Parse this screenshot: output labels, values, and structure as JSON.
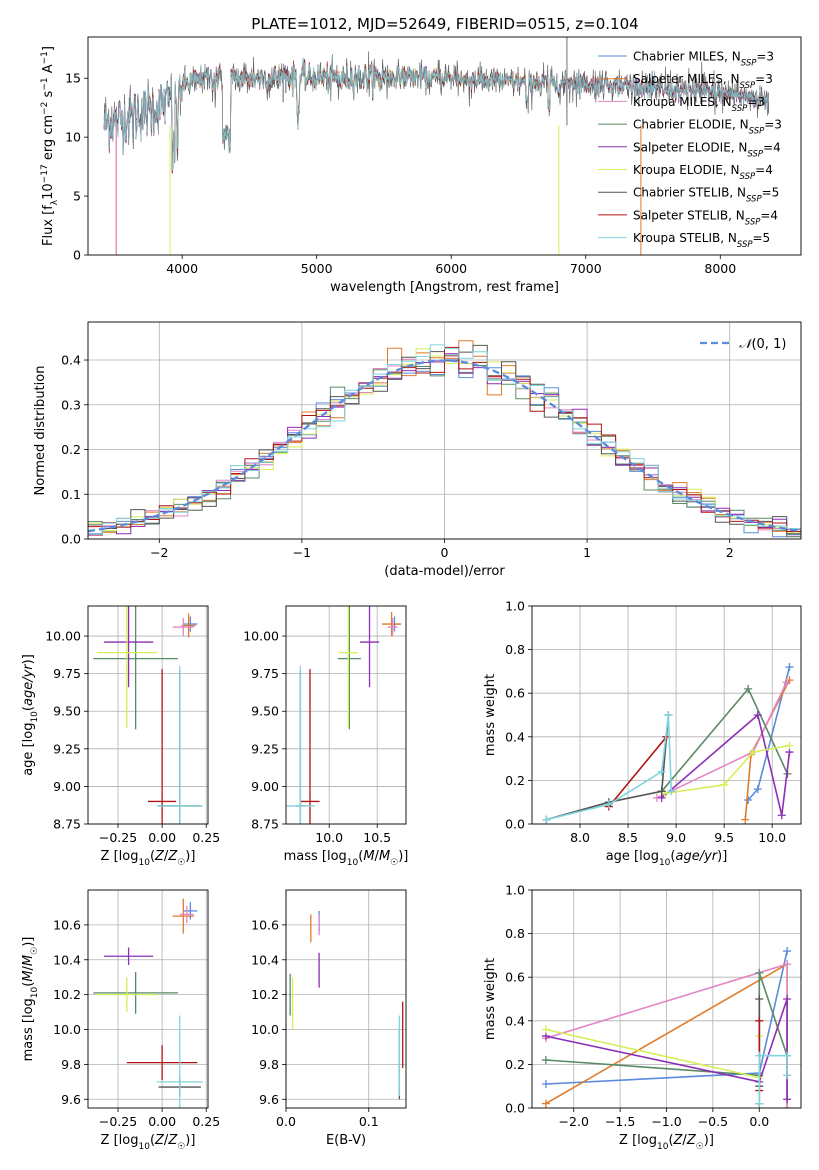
{
  "title": "PLATE=1012, MJD=52649, FIBERID=0515, z=0.104",
  "colors": {
    "Chabrier MILES": "#5b8bdc",
    "Salpeter MILES": "#e07b2a",
    "Kroupa MILES": "#e386c4",
    "Chabrier ELODIE": "#5a8a66",
    "Salpeter ELODIE": "#8b2fb4",
    "Kroupa ELODIE": "#d6ee5a",
    "Chabrier STELIB": "#555555",
    "Salpeter STELIB": "#b01515",
    "Kroupa STELIB": "#7fd4de"
  },
  "chart_data": [
    {
      "id": "spectrum",
      "type": "line",
      "title": "PLATE=1012, MJD=52649, FIBERID=0515, z=0.104",
      "xlabel": "wavelength [Angstrom, rest frame]",
      "ylabel": "Flux [f_λ 10^-17 erg cm^-2 s^-1 A^-1]",
      "xlim": [
        3300,
        8600
      ],
      "ylim": [
        0,
        18.5
      ],
      "xticks": [
        4000,
        5000,
        6000,
        7000,
        8000
      ],
      "yticks": [
        0,
        5,
        10,
        15
      ],
      "grid": false,
      "legend_position": "top-right",
      "legend": [
        {
          "label": "Chabrier MILES, N_SSP=3",
          "base": "Chabrier MILES, N",
          "sub": "SSP",
          "tail": "=3",
          "series": "Chabrier MILES"
        },
        {
          "label": "Salpeter MILES, N_SSP=3",
          "base": "Salpeter MILES, N",
          "sub": "SSP",
          "tail": "=3",
          "series": "Salpeter MILES"
        },
        {
          "label": "Kroupa MILES, N_SSP=3",
          "base": "Kroupa MILES, N",
          "sub": "SSP",
          "tail": "=3",
          "series": "Kroupa MILES"
        },
        {
          "label": "Chabrier ELODIE, N_SSP=3",
          "base": "Chabrier ELODIE, N",
          "sub": "SSP",
          "tail": "=3",
          "series": "Chabrier ELODIE"
        },
        {
          "label": "Salpeter ELODIE, N_SSP=4",
          "base": "Salpeter ELODIE, N",
          "sub": "SSP",
          "tail": "=4",
          "series": "Salpeter ELODIE"
        },
        {
          "label": "Kroupa ELODIE, N_SSP=4",
          "base": "Kroupa ELODIE, N",
          "sub": "SSP",
          "tail": "=4",
          "series": "Kroupa ELODIE"
        },
        {
          "label": "Chabrier STELIB, N_SSP=5",
          "base": "Chabrier STELIB, N",
          "sub": "SSP",
          "tail": "=5",
          "series": "Chabrier STELIB"
        },
        {
          "label": "Salpeter STELIB, N_SSP=4",
          "base": "Salpeter STELIB, N",
          "sub": "SSP",
          "tail": "=4",
          "series": "Salpeter STELIB"
        },
        {
          "label": "Kroupa STELIB, N_SSP=5",
          "base": "Kroupa STELIB, N",
          "sub": "SSP",
          "tail": "=5",
          "series": "Kroupa STELIB"
        }
      ],
      "continuum": {
        "x": [
          3400,
          3700,
          3900,
          4000,
          4200,
          4500,
          4800,
          5200,
          5600,
          6000,
          6400,
          6800,
          7200,
          7600,
          8000,
          8400
        ],
        "y": [
          11.0,
          12.0,
          13.0,
          14.5,
          15.0,
          15.0,
          15.1,
          15.0,
          15.2,
          15.0,
          14.7,
          14.6,
          14.5,
          14.0,
          13.8,
          13.0
        ]
      },
      "model_range": {
        "Salpeter MILES": [
          3510,
          7410
        ],
        "Kroupa STELIB": [
          3420,
          8360
        ],
        "Kroupa ELODIE": [
          3900,
          6800
        ],
        "Chabrier STELIB": [
          3420,
          8360
        ]
      }
    },
    {
      "id": "residuals",
      "type": "histogram",
      "xlabel": "(data-model)/error",
      "ylabel": "Normed distribution",
      "xlim": [
        -2.5,
        2.5
      ],
      "ylim": [
        0,
        0.485
      ],
      "xticks": [
        -2,
        -1,
        0,
        1,
        2
      ],
      "yticks": [
        0.0,
        0.1,
        0.2,
        0.3,
        0.4
      ],
      "grid": true,
      "legend_position": "top-right",
      "reference_curve": {
        "label": "N(0,1)",
        "mean": 0,
        "sigma": 1
      },
      "bin_width": 0.1
    },
    {
      "id": "age_vs_Z",
      "type": "errorbar",
      "xlabel": "Z [log10(Z/Z☉)]",
      "ylabel": "age [log10(age/yr)]",
      "xlim": [
        -0.42,
        0.26
      ],
      "ylim": [
        8.75,
        10.2
      ],
      "xticks": [
        -0.25,
        0.0,
        0.25
      ],
      "yticks": [
        8.75,
        9.0,
        9.25,
        9.5,
        9.75,
        10.0
      ],
      "grid": true,
      "points": [
        {
          "series": "Chabrier MILES",
          "x": 0.16,
          "xerr": 0.04,
          "y": 10.08,
          "yerr": 0.05
        },
        {
          "series": "Salpeter MILES",
          "x": 0.15,
          "xerr": 0.04,
          "y": 10.07,
          "yerr": 0.08
        },
        {
          "series": "Kroupa MILES",
          "x": 0.12,
          "xerr": 0.06,
          "y": 10.06,
          "yerr": 0.06
        },
        {
          "series": "Chabrier ELODIE",
          "x": -0.15,
          "xerr": 0.24,
          "y": 9.85,
          "yerr": 0.47
        },
        {
          "series": "Salpeter ELODIE",
          "x": -0.19,
          "xerr": 0.14,
          "y": 9.96,
          "yerr": 0.3
        },
        {
          "series": "Kroupa ELODIE",
          "x": -0.2,
          "xerr": 0.17,
          "y": 9.89,
          "yerr": 0.5
        },
        {
          "series": "Chabrier STELIB",
          "x": 0.1,
          "xerr": 0.12,
          "y": 8.87,
          "yerr": 0.9
        },
        {
          "series": "Salpeter STELIB",
          "x": 0.0,
          "xerr": 0.08,
          "y": 8.9,
          "yerr": 0.88
        },
        {
          "series": "Kroupa STELIB",
          "x": 0.1,
          "xerr": 0.13,
          "y": 8.87,
          "yerr": 0.93
        }
      ]
    },
    {
      "id": "age_vs_mass",
      "type": "errorbar",
      "xlabel": "mass [log10(M/M☉)]",
      "ylabel": "",
      "xlim": [
        9.55,
        10.8
      ],
      "ylim": [
        8.75,
        10.2
      ],
      "xticks": [
        10.0,
        10.5
      ],
      "yticks": [
        8.75,
        9.0,
        9.25,
        9.5,
        9.75,
        10.0
      ],
      "grid": true,
      "points": [
        {
          "series": "Chabrier MILES",
          "x": 10.68,
          "xerr": 0.05,
          "y": 10.08,
          "yerr": 0.05
        },
        {
          "series": "Salpeter MILES",
          "x": 10.65,
          "xerr": 0.1,
          "y": 10.08,
          "yerr": 0.08
        },
        {
          "series": "Kroupa MILES",
          "x": 10.66,
          "xerr": 0.05,
          "y": 10.06,
          "yerr": 0.06
        },
        {
          "series": "Chabrier ELODIE",
          "x": 10.21,
          "xerr": 0.12,
          "y": 9.85,
          "yerr": 0.47
        },
        {
          "series": "Salpeter ELODIE",
          "x": 10.42,
          "xerr": 0.1,
          "y": 9.96,
          "yerr": 0.3
        },
        {
          "series": "Kroupa ELODIE",
          "x": 10.2,
          "xerr": 0.1,
          "y": 9.89,
          "yerr": 0.5
        },
        {
          "series": "Chabrier STELIB",
          "x": 9.7,
          "xerr": 0.05,
          "y": 8.87,
          "yerr": 0.9
        },
        {
          "series": "Salpeter STELIB",
          "x": 9.8,
          "xerr": 0.1,
          "y": 8.9,
          "yerr": 0.88
        },
        {
          "series": "Kroupa STELIB",
          "x": 9.7,
          "xerr": 0.15,
          "y": 8.87,
          "yerr": 0.93
        }
      ]
    },
    {
      "id": "weight_vs_age",
      "type": "line",
      "xlabel": "age [log10(age/yr)]",
      "ylabel": "mass weight",
      "xlim": [
        7.5,
        10.3
      ],
      "ylim": [
        0,
        1.0
      ],
      "xticks": [
        8.0,
        8.5,
        9.0,
        9.5,
        10.0
      ],
      "yticks": [
        0.0,
        0.2,
        0.4,
        0.6,
        0.8,
        1.0
      ],
      "grid": true,
      "series": [
        {
          "name": "Chabrier MILES",
          "x": [
            9.75,
            9.85,
            10.18
          ],
          "y": [
            0.11,
            0.16,
            0.72
          ]
        },
        {
          "name": "Salpeter MILES",
          "x": [
            9.72,
            9.78,
            10.18
          ],
          "y": [
            0.02,
            0.32,
            0.66
          ]
        },
        {
          "name": "Kroupa MILES",
          "x": [
            8.8,
            9.8,
            10.15
          ],
          "y": [
            0.12,
            0.33,
            0.65
          ]
        },
        {
          "name": "Chabrier ELODIE",
          "x": [
            8.85,
            9.75,
            10.16
          ],
          "y": [
            0.15,
            0.62,
            0.23
          ]
        },
        {
          "name": "Salpeter ELODIE",
          "x": [
            8.85,
            9.85,
            10.1,
            10.18
          ],
          "y": [
            0.12,
            0.5,
            0.04,
            0.33
          ]
        },
        {
          "name": "Kroupa ELODIE",
          "x": [
            8.88,
            9.5,
            9.8,
            10.18
          ],
          "y": [
            0.14,
            0.18,
            0.33,
            0.36
          ]
        },
        {
          "name": "Chabrier STELIB",
          "x": [
            7.65,
            8.3,
            8.85,
            8.92
          ],
          "y": [
            0.02,
            0.1,
            0.15,
            0.5
          ]
        },
        {
          "name": "Salpeter STELIB",
          "x": [
            8.3,
            8.9
          ],
          "y": [
            0.08,
            0.4
          ]
        },
        {
          "name": "Kroupa STELIB",
          "x": [
            7.65,
            8.3,
            8.85,
            8.92,
            8.95
          ],
          "y": [
            0.02,
            0.09,
            0.24,
            0.5,
            0.15
          ]
        }
      ]
    },
    {
      "id": "mass_vs_Z",
      "type": "errorbar",
      "xlabel": "Z [log10(Z/Z☉)]",
      "ylabel": "mass [log10(M/M☉)]",
      "xlim": [
        -0.42,
        0.26
      ],
      "ylim": [
        9.55,
        10.8
      ],
      "xticks": [
        -0.25,
        0.0,
        0.25
      ],
      "yticks": [
        9.6,
        9.8,
        10.0,
        10.2,
        10.4,
        10.6
      ],
      "grid": true,
      "points": [
        {
          "series": "Chabrier MILES",
          "x": 0.16,
          "xerr": 0.04,
          "y": 10.68,
          "yerr": 0.05
        },
        {
          "series": "Salpeter MILES",
          "x": 0.12,
          "xerr": 0.06,
          "y": 10.65,
          "yerr": 0.1
        },
        {
          "series": "Kroupa MILES",
          "x": 0.14,
          "xerr": 0.04,
          "y": 10.66,
          "yerr": 0.05
        },
        {
          "series": "Chabrier ELODIE",
          "x": -0.15,
          "xerr": 0.24,
          "y": 10.21,
          "yerr": 0.12
        },
        {
          "series": "Salpeter ELODIE",
          "x": -0.19,
          "xerr": 0.14,
          "y": 10.42,
          "yerr": 0.05
        },
        {
          "series": "Kroupa ELODIE",
          "x": -0.2,
          "xerr": 0.17,
          "y": 10.2,
          "yerr": 0.1
        },
        {
          "series": "Chabrier STELIB",
          "x": 0.1,
          "xerr": 0.12,
          "y": 9.67,
          "yerr": 0.05
        },
        {
          "series": "Salpeter STELIB",
          "x": 0.0,
          "xerr": 0.2,
          "y": 9.81,
          "yerr": 0.1
        },
        {
          "series": "Kroupa STELIB",
          "x": 0.1,
          "xerr": 0.13,
          "y": 9.7,
          "yerr": 0.38
        }
      ]
    },
    {
      "id": "mass_vs_EBV",
      "type": "errorbar",
      "xlabel": "E(B-V)",
      "ylabel": "",
      "xlim": [
        0,
        0.145
      ],
      "ylim": [
        9.55,
        10.8
      ],
      "xticks": [
        0.0,
        0.1
      ],
      "yticks": [
        9.6,
        9.8,
        10.0,
        10.2,
        10.4,
        10.6
      ],
      "grid": true,
      "points": [
        {
          "series": "Chabrier MILES",
          "x": 0.04,
          "xerr": 0,
          "y": 10.62,
          "yerr": 0.06
        },
        {
          "series": "Salpeter MILES",
          "x": 0.03,
          "xerr": 0,
          "y": 10.58,
          "yerr": 0.08
        },
        {
          "series": "Kroupa MILES",
          "x": 0.04,
          "xerr": 0,
          "y": 10.6,
          "yerr": 0.06
        },
        {
          "series": "Chabrier ELODIE",
          "x": 0.005,
          "xerr": 0,
          "y": 10.2,
          "yerr": 0.12
        },
        {
          "series": "Salpeter ELODIE",
          "x": 0.04,
          "xerr": 0,
          "y": 10.34,
          "yerr": 0.1
        },
        {
          "series": "Kroupa ELODIE",
          "x": 0.008,
          "xerr": 0,
          "y": 10.15,
          "yerr": 0.15
        },
        {
          "series": "Chabrier STELIB",
          "x": 0.137,
          "xerr": 0,
          "y": 9.8,
          "yerr": 0.2
        },
        {
          "series": "Salpeter STELIB",
          "x": 0.141,
          "xerr": 0,
          "y": 9.97,
          "yerr": 0.19
        },
        {
          "series": "Kroupa STELIB",
          "x": 0.137,
          "xerr": 0,
          "y": 9.85,
          "yerr": 0.23
        }
      ]
    },
    {
      "id": "weight_vs_Z",
      "type": "line",
      "xlabel": "Z [log10(Z/Z☉)]",
      "ylabel": "mass weight",
      "xlim": [
        -2.45,
        0.45
      ],
      "ylim": [
        0,
        1.0
      ],
      "xticks": [
        -2.0,
        -1.5,
        -1.0,
        -0.5,
        0.0
      ],
      "yticks": [
        0.0,
        0.2,
        0.4,
        0.6,
        0.8,
        1.0
      ],
      "grid": true,
      "series": [
        {
          "name": "Chabrier MILES",
          "x": [
            -2.3,
            0.0,
            0.3
          ],
          "y": [
            0.11,
            0.16,
            0.72
          ]
        },
        {
          "name": "Salpeter MILES",
          "x": [
            -2.3,
            0.3,
            0.3
          ],
          "y": [
            0.02,
            0.66,
            0.0
          ]
        },
        {
          "name": "Kroupa MILES",
          "x": [
            -2.3,
            0.3,
            0.3
          ],
          "y": [
            0.32,
            0.66,
            0.0
          ]
        },
        {
          "name": "Chabrier ELODIE",
          "x": [
            -2.3,
            0.0,
            0.0,
            0.3
          ],
          "y": [
            0.22,
            0.15,
            0.62,
            0.24
          ]
        },
        {
          "name": "Salpeter ELODIE",
          "x": [
            -2.3,
            0.0,
            0.3,
            0.3
          ],
          "y": [
            0.33,
            0.12,
            0.5,
            0.04
          ]
        },
        {
          "name": "Kroupa ELODIE",
          "x": [
            -2.3,
            0.0,
            0.0
          ],
          "y": [
            0.36,
            0.14,
            0.33
          ]
        },
        {
          "name": "Chabrier STELIB",
          "x": [
            0.0,
            0.0,
            0.0
          ],
          "y": [
            0.02,
            0.5,
            0.1
          ]
        },
        {
          "name": "Salpeter STELIB",
          "x": [
            0.0,
            0.0
          ],
          "y": [
            0.08,
            0.4
          ]
        },
        {
          "name": "Kroupa STELIB",
          "x": [
            0.0,
            0.0,
            0.3,
            0.3
          ],
          "y": [
            0.02,
            0.24,
            0.24,
            0.15
          ]
        }
      ]
    }
  ]
}
